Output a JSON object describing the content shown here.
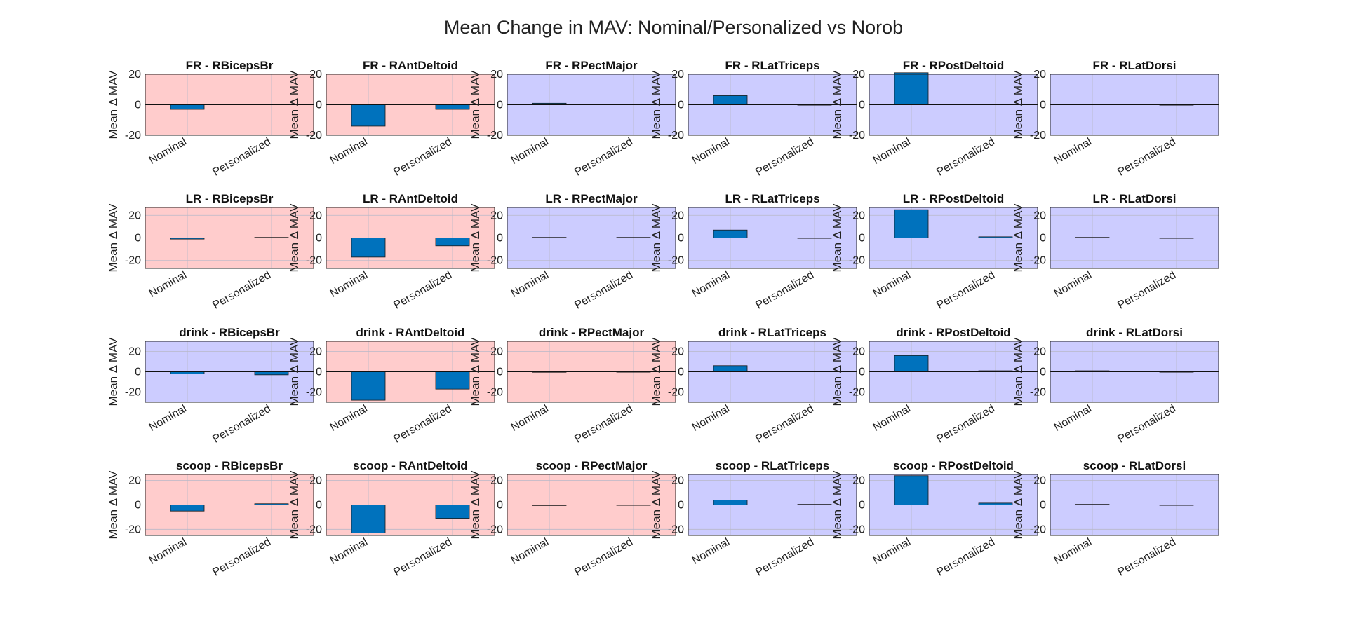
{
  "figure": {
    "title": "Mean Change in MAV: Nominal/Personalized vs Norob"
  },
  "colors": {
    "decrease_bg": "#ffcccc",
    "increase_bg": "#ccccff",
    "bar_fill": "#0072bd",
    "bar_edge": "#1a1a1a",
    "grid": "#b8b8c8"
  },
  "chart_data": {
    "type": "bar",
    "title": "Mean Change in MAV: Nominal/Personalized vs Norob",
    "categories": [
      "Nominal",
      "Personalized"
    ],
    "ylabel": "Mean Δ MAV",
    "grid": true,
    "rows": [
      {
        "task": "FR",
        "ylim": [
          -20,
          20
        ],
        "yticks": [
          "20",
          "0",
          "-20"
        ],
        "ytick_values": [
          20,
          0,
          -20
        ],
        "panels": [
          {
            "title": "FR - RBicepsBr",
            "background": "decrease",
            "values": [
              -3,
              0.5
            ]
          },
          {
            "title": "FR - RAntDeltoid",
            "background": "decrease",
            "values": [
              -14,
              -3
            ]
          },
          {
            "title": "FR - RPectMajor",
            "background": "increase",
            "values": [
              1,
              0.5
            ]
          },
          {
            "title": "FR - RLatTriceps",
            "background": "increase",
            "values": [
              6,
              0
            ]
          },
          {
            "title": "FR - RPostDeltoid",
            "background": "increase",
            "values": [
              21,
              0.5
            ]
          },
          {
            "title": "FR - RLatDorsi",
            "background": "increase",
            "values": [
              0.5,
              0
            ]
          }
        ]
      },
      {
        "task": "LR",
        "ylim": [
          -27,
          27
        ],
        "yticks": [
          "20",
          "0",
          "-20"
        ],
        "ytick_values": [
          20,
          0,
          -20
        ],
        "panels": [
          {
            "title": "LR - RBicepsBr",
            "background": "decrease",
            "values": [
              -1,
              0.5
            ]
          },
          {
            "title": "LR - RAntDeltoid",
            "background": "decrease",
            "values": [
              -17,
              -7
            ]
          },
          {
            "title": "LR - RPectMajor",
            "background": "increase",
            "values": [
              0.5,
              0.5
            ]
          },
          {
            "title": "LR - RLatTriceps",
            "background": "increase",
            "values": [
              7,
              0
            ]
          },
          {
            "title": "LR - RPostDeltoid",
            "background": "increase",
            "values": [
              25,
              1
            ]
          },
          {
            "title": "LR - RLatDorsi",
            "background": "increase",
            "values": [
              0.5,
              0
            ]
          }
        ]
      },
      {
        "task": "drink",
        "ylim": [
          -30,
          30
        ],
        "yticks": [
          "20",
          "0",
          "-20"
        ],
        "ytick_values": [
          20,
          0,
          -20
        ],
        "panels": [
          {
            "title": "drink - RBicepsBr",
            "background": "increase",
            "values": [
              -2,
              -3
            ]
          },
          {
            "title": "drink - RAntDeltoid",
            "background": "decrease",
            "values": [
              -28,
              -17
            ]
          },
          {
            "title": "drink - RPectMajor",
            "background": "decrease",
            "values": [
              -0.5,
              0
            ]
          },
          {
            "title": "drink - RLatTriceps",
            "background": "increase",
            "values": [
              6,
              0.5
            ]
          },
          {
            "title": "drink - RPostDeltoid",
            "background": "increase",
            "values": [
              16,
              1
            ]
          },
          {
            "title": "drink - RLatDorsi",
            "background": "increase",
            "values": [
              1,
              0
            ]
          }
        ]
      },
      {
        "task": "scoop",
        "ylim": [
          -25,
          25
        ],
        "yticks": [
          "20",
          "0",
          "-20"
        ],
        "ytick_values": [
          20,
          0,
          -20
        ],
        "panels": [
          {
            "title": "scoop - RBicepsBr",
            "background": "decrease",
            "values": [
              -5,
              1
            ]
          },
          {
            "title": "scoop - RAntDeltoid",
            "background": "decrease",
            "values": [
              -23,
              -11
            ]
          },
          {
            "title": "scoop - RPectMajor",
            "background": "decrease",
            "values": [
              -0.5,
              0
            ]
          },
          {
            "title": "scoop - RLatTriceps",
            "background": "increase",
            "values": [
              4,
              0.5
            ]
          },
          {
            "title": "scoop - RPostDeltoid",
            "background": "increase",
            "values": [
              24,
              1.5
            ]
          },
          {
            "title": "scoop - RLatDorsi",
            "background": "increase",
            "values": [
              0.5,
              0
            ]
          }
        ]
      }
    ]
  }
}
